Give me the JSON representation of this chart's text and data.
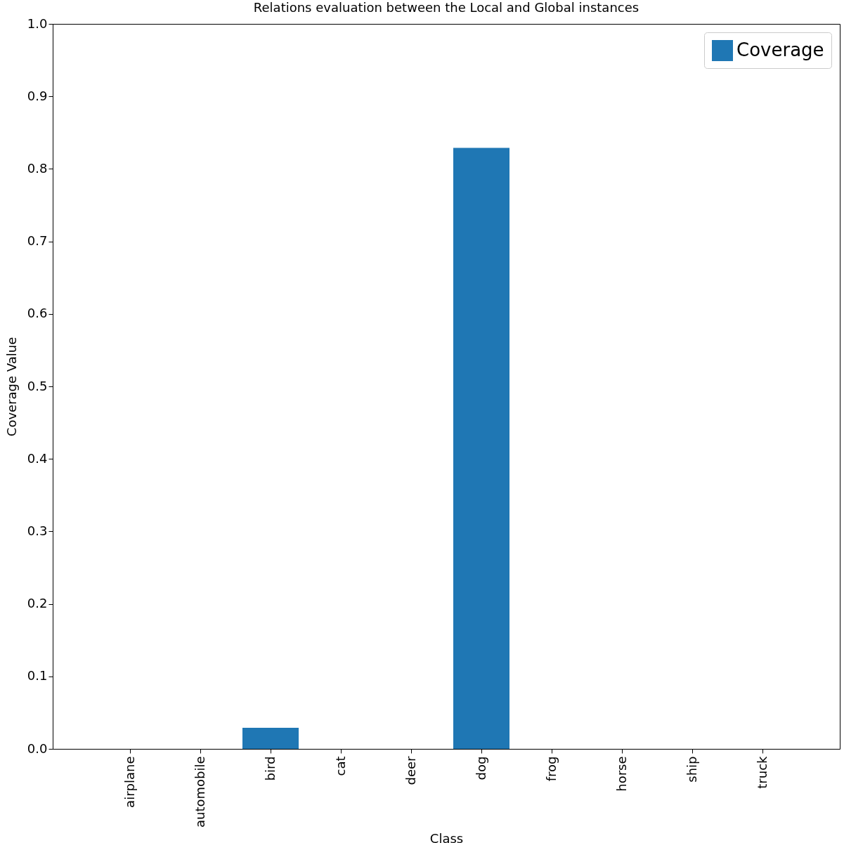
{
  "chart_data": {
    "type": "bar",
    "title": "Relations evaluation between the Local and Global instances",
    "xlabel": "Class",
    "ylabel": "Coverage Value",
    "categories": [
      "airplane",
      "automobile",
      "bird",
      "cat",
      "deer",
      "dog",
      "frog",
      "horse",
      "ship",
      "truck"
    ],
    "series": [
      {
        "name": "Coverage",
        "color": "#1f77b4",
        "values": [
          0,
          0,
          0.029,
          0,
          0,
          0.829,
          0,
          0,
          0,
          0
        ]
      }
    ],
    "ylim": [
      0,
      1
    ],
    "yticks": [
      {
        "value": 0,
        "label": "0.0"
      },
      0.1,
      0.2,
      0.3,
      0.4,
      0.5,
      0.6,
      0.7,
      0.8,
      0.9,
      {
        "value": 1,
        "label": "1.0"
      }
    ],
    "legend": "top right"
  }
}
